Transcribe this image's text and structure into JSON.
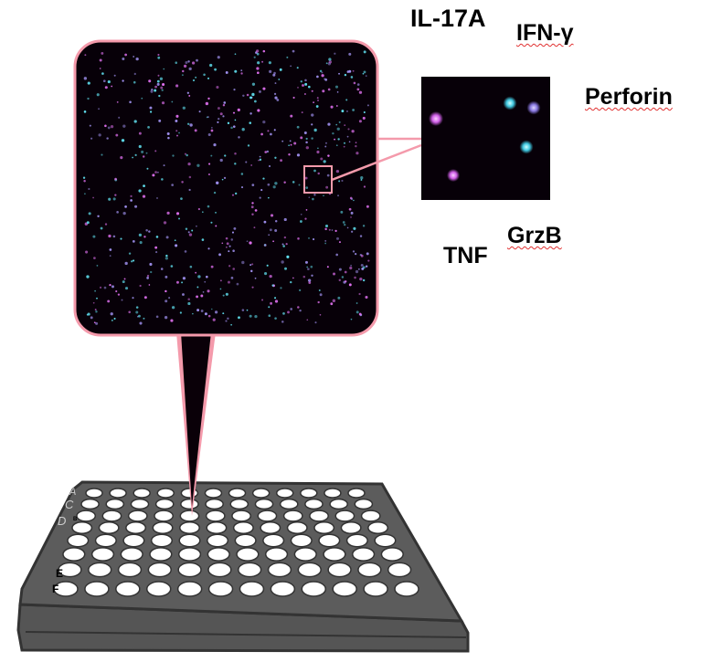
{
  "labels": {
    "il17a": "IL-17A",
    "ifng": "IFN-γ",
    "perforin": "Perforin",
    "tnf": "TNF",
    "grzb": "GrzB"
  },
  "plate": {
    "rows": 8,
    "columns": 12,
    "row_letters": [
      "A",
      "C",
      "D",
      "B",
      "E",
      "F"
    ]
  },
  "colors": {
    "highlight": "#f49aab",
    "plate": "#5a5a5a",
    "image_background": "#070008",
    "magenta_dot": "#e070f0",
    "cyan_dot": "#60e0f0",
    "violet_dot": "#a090f0"
  }
}
